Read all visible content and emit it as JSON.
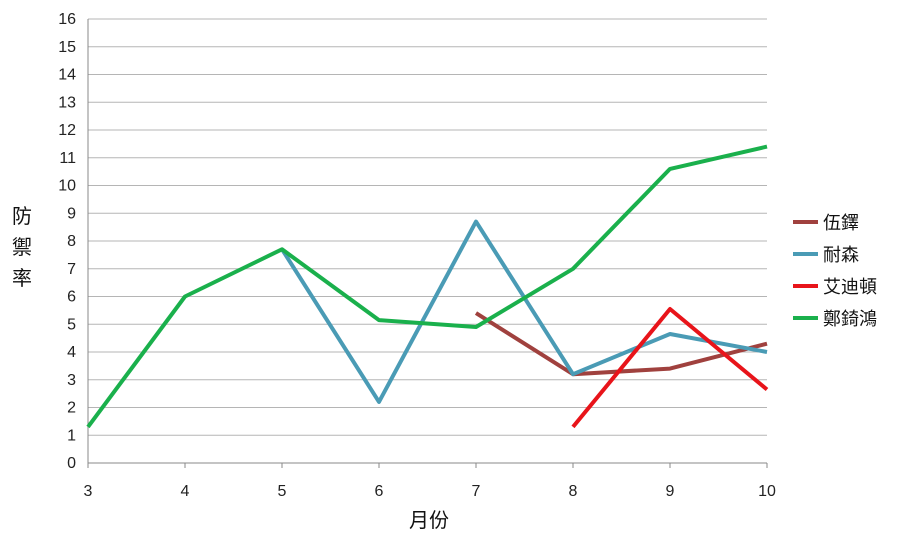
{
  "chart_data": {
    "type": "line",
    "xlabel": "月份",
    "ylabel": "防禦率",
    "x": [
      3,
      4,
      5,
      6,
      7,
      8,
      9,
      10
    ],
    "xlim": [
      3,
      10
    ],
    "ylim": [
      0,
      16
    ],
    "yticks": [
      0,
      1,
      2,
      3,
      4,
      5,
      6,
      7,
      8,
      9,
      10,
      11,
      12,
      13,
      14,
      15,
      16
    ],
    "grid": "horizontal",
    "legend_position": "right",
    "series": [
      {
        "name": "伍鐸",
        "color": "#a0413e",
        "values": [
          null,
          null,
          null,
          null,
          5.4,
          3.2,
          3.4,
          4.3
        ]
      },
      {
        "name": "耐森",
        "color": "#4a9bb5",
        "values": [
          null,
          null,
          7.7,
          2.2,
          8.7,
          3.2,
          4.65,
          4.0
        ]
      },
      {
        "name": "艾迪頓",
        "color": "#e8141a",
        "values": [
          null,
          null,
          null,
          null,
          null,
          1.3,
          5.55,
          2.65
        ]
      },
      {
        "name": "鄭錡鴻",
        "color": "#1ab04c",
        "values": [
          1.3,
          6.0,
          7.7,
          5.15,
          4.9,
          7.0,
          10.6,
          11.4
        ]
      }
    ]
  }
}
